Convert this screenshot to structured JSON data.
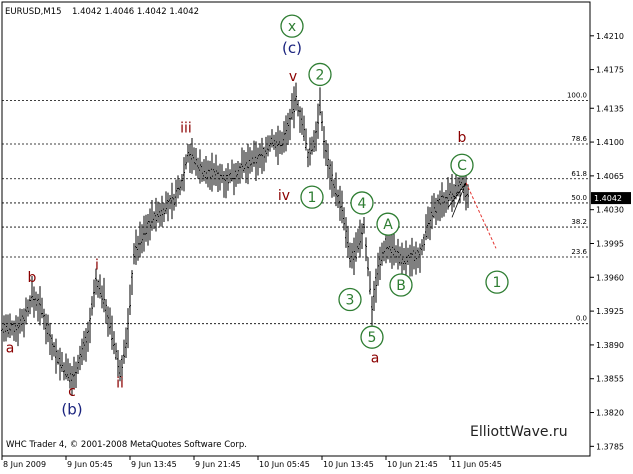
{
  "header": {
    "symbol": "EURUSD,M15",
    "ohlc": "1.4042 1.4046 1.4042 1.4042"
  },
  "footer": {
    "copyright": "WHC Trader 4, © 2001-2008 MetaQuotes Software Corp.",
    "watermark": "ElliottWave.ru"
  },
  "current_price_label": "1.4042",
  "colors": {
    "background": "#ffffff",
    "bars": "#000000",
    "grid": "#000000",
    "wave_red": "#8b0000",
    "wave_blue": "#1a237e",
    "wave_green": "#2e7d32",
    "projection": "#e53935",
    "price_box": "#000000"
  },
  "chart_data": {
    "type": "bar",
    "symbol": "EURUSD",
    "timeframe": "M15",
    "ylim": [
      1.3775,
      1.4245
    ],
    "y_ticks": [
      "1.4210",
      "1.4175",
      "1.4135",
      "1.4100",
      "1.4065",
      "1.4030",
      "1.3995",
      "1.3960",
      "1.3925",
      "1.3890",
      "1.3855",
      "1.3820",
      "1.3785"
    ],
    "x_tick_labels": [
      "8 Jun 2009",
      "9 Jun 05:45",
      "9 Jun 13:45",
      "9 Jun 21:45",
      "10 Jun 05:45",
      "10 Jun 13:45",
      "10 Jun 21:45",
      "11 Jun 05:45"
    ],
    "fib_levels": [
      {
        "label": "100.0",
        "price": 1.4143
      },
      {
        "label": "78.6",
        "price": 1.4098
      },
      {
        "label": "61.8",
        "price": 1.4062
      },
      {
        "label": "50.0",
        "price": 1.4037
      },
      {
        "label": "38.2",
        "price": 1.4012
      },
      {
        "label": "23.6",
        "price": 1.3981
      },
      {
        "label": "0.0",
        "price": 1.3912
      }
    ],
    "price_path": [
      [
        0,
        1.391
      ],
      [
        8,
        1.3905
      ],
      [
        16,
        1.3908
      ],
      [
        24,
        1.3918
      ],
      [
        32,
        1.394
      ],
      [
        40,
        1.393
      ],
      [
        48,
        1.3906
      ],
      [
        56,
        1.388
      ],
      [
        64,
        1.3865
      ],
      [
        72,
        1.3855
      ],
      [
        80,
        1.3876
      ],
      [
        88,
        1.39
      ],
      [
        96,
        1.3955
      ],
      [
        104,
        1.3938
      ],
      [
        112,
        1.39
      ],
      [
        120,
        1.3862
      ],
      [
        127,
        1.3895
      ],
      [
        134,
        1.3985
      ],
      [
        142,
        1.4
      ],
      [
        150,
        1.4018
      ],
      [
        158,
        1.4025
      ],
      [
        166,
        1.4033
      ],
      [
        174,
        1.404
      ],
      [
        182,
        1.406
      ],
      [
        188,
        1.409
      ],
      [
        196,
        1.4078
      ],
      [
        206,
        1.4068
      ],
      [
        218,
        1.4067
      ],
      [
        228,
        1.4062
      ],
      [
        240,
        1.4072
      ],
      [
        250,
        1.4078
      ],
      [
        262,
        1.4085
      ],
      [
        272,
        1.4102
      ],
      [
        280,
        1.4096
      ],
      [
        288,
        1.4115
      ],
      [
        296,
        1.4143
      ],
      [
        302,
        1.4122
      ],
      [
        308,
        1.4085
      ],
      [
        314,
        1.41
      ],
      [
        320,
        1.4135
      ],
      [
        326,
        1.4088
      ],
      [
        334,
        1.4055
      ],
      [
        342,
        1.403
      ],
      [
        350,
        1.398
      ],
      [
        356,
        1.3985
      ],
      [
        364,
        1.4012
      ],
      [
        372,
        1.393
      ],
      [
        378,
        1.3968
      ],
      [
        386,
        1.3995
      ],
      [
        394,
        1.3988
      ],
      [
        402,
        1.3976
      ],
      [
        410,
        1.398
      ],
      [
        420,
        1.3986
      ],
      [
        430,
        1.4018
      ],
      [
        438,
        1.4037
      ],
      [
        446,
        1.4042
      ],
      [
        454,
        1.4048
      ],
      [
        462,
        1.4058
      ],
      [
        468,
        1.4042
      ]
    ],
    "projection_path": [
      [
        466,
        1.4058
      ],
      [
        496,
        1.399
      ]
    ],
    "wave_labels": [
      {
        "text": "a",
        "style": "red",
        "x": 10,
        "price": 1.3882
      },
      {
        "text": "b",
        "style": "red",
        "x": 32,
        "price": 1.3955
      },
      {
        "text": "c",
        "style": "red",
        "x": 72,
        "price": 1.3837
      },
      {
        "text": "(b)",
        "style": "blue",
        "x": 72,
        "price": 1.3818
      },
      {
        "text": "i",
        "style": "red",
        "x": 97,
        "price": 1.3968
      },
      {
        "text": "ii",
        "style": "red",
        "x": 120,
        "price": 1.3846
      },
      {
        "text": "iii",
        "style": "red",
        "x": 186,
        "price": 1.411
      },
      {
        "text": "iv",
        "style": "red",
        "x": 284,
        "price": 1.404
      },
      {
        "text": "v",
        "style": "red",
        "x": 293,
        "price": 1.4163
      },
      {
        "text": "(c)",
        "style": "blue",
        "x": 292,
        "price": 1.4192
      },
      {
        "text": "a",
        "style": "red",
        "x": 375,
        "price": 1.3872
      },
      {
        "text": "b",
        "style": "red",
        "x": 462,
        "price": 1.41
      }
    ],
    "circle_labels": [
      {
        "text": "x",
        "x": 292,
        "price": 1.422
      },
      {
        "text": "2",
        "x": 320,
        "price": 1.417
      },
      {
        "text": "1",
        "x": 312,
        "price": 1.4043
      },
      {
        "text": "4",
        "x": 362,
        "price": 1.4037
      },
      {
        "text": "A",
        "x": 388,
        "price": 1.4015
      },
      {
        "text": "3",
        "x": 350,
        "price": 1.3937
      },
      {
        "text": "B",
        "x": 401,
        "price": 1.3952
      },
      {
        "text": "5",
        "x": 372,
        "price": 1.3898
      },
      {
        "text": "C",
        "x": 462,
        "price": 1.4076
      },
      {
        "text": "1",
        "x": 497,
        "price": 1.3955
      }
    ]
  }
}
